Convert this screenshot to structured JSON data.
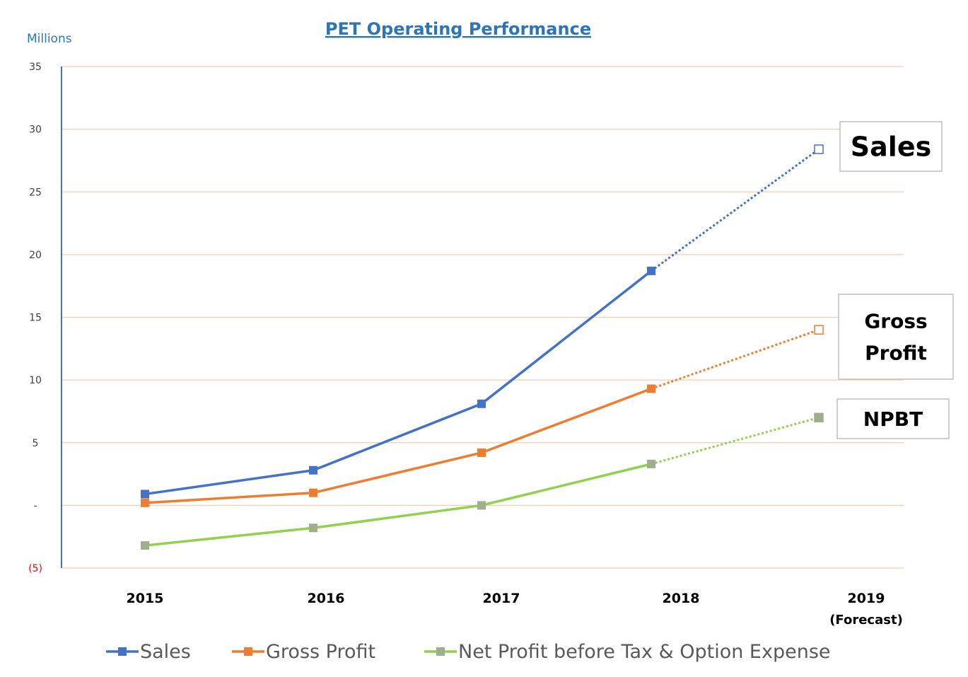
{
  "chart_data": {
    "type": "line",
    "title": "PET Operating Performance",
    "ylabel": "Millions",
    "ylim": [
      -5,
      35
    ],
    "yticks": [
      35,
      30,
      25,
      20,
      15,
      10,
      5,
      0,
      -5
    ],
    "ytick_labels": [
      "35",
      "30",
      "25",
      "20",
      "15",
      "10",
      "5",
      "-",
      "(5)"
    ],
    "categories": [
      "2015",
      "2016",
      "2017",
      "2018",
      "2019"
    ],
    "category_sublabels": [
      "",
      "",
      "",
      "",
      "(Forecast)"
    ],
    "grid": true,
    "legend": "bottom",
    "forecast_style": "dotted line and hollow marker for 2019",
    "series": [
      {
        "name": "Sales",
        "color": "#4472c4",
        "values": [
          0.9,
          2.8,
          8.1,
          18.7,
          28.4
        ],
        "callout": "Sales"
      },
      {
        "name": "Gross Profit",
        "color": "#ed7d31",
        "values": [
          0.2,
          1.0,
          4.2,
          9.3,
          14.0
        ],
        "callout": "Gross Profit"
      },
      {
        "name": "Net Profit before Tax & Option Expense",
        "color": "#92d050",
        "marker_color": "#9fae8c",
        "values": [
          -3.2,
          -1.8,
          0.0,
          3.3,
          7.0
        ],
        "callout": "NPBT"
      }
    ],
    "colors": {
      "grid": "#f8cbad",
      "axis": "#4472c4",
      "negative_tick": "#ff0000",
      "title": "#2e75b6"
    }
  }
}
